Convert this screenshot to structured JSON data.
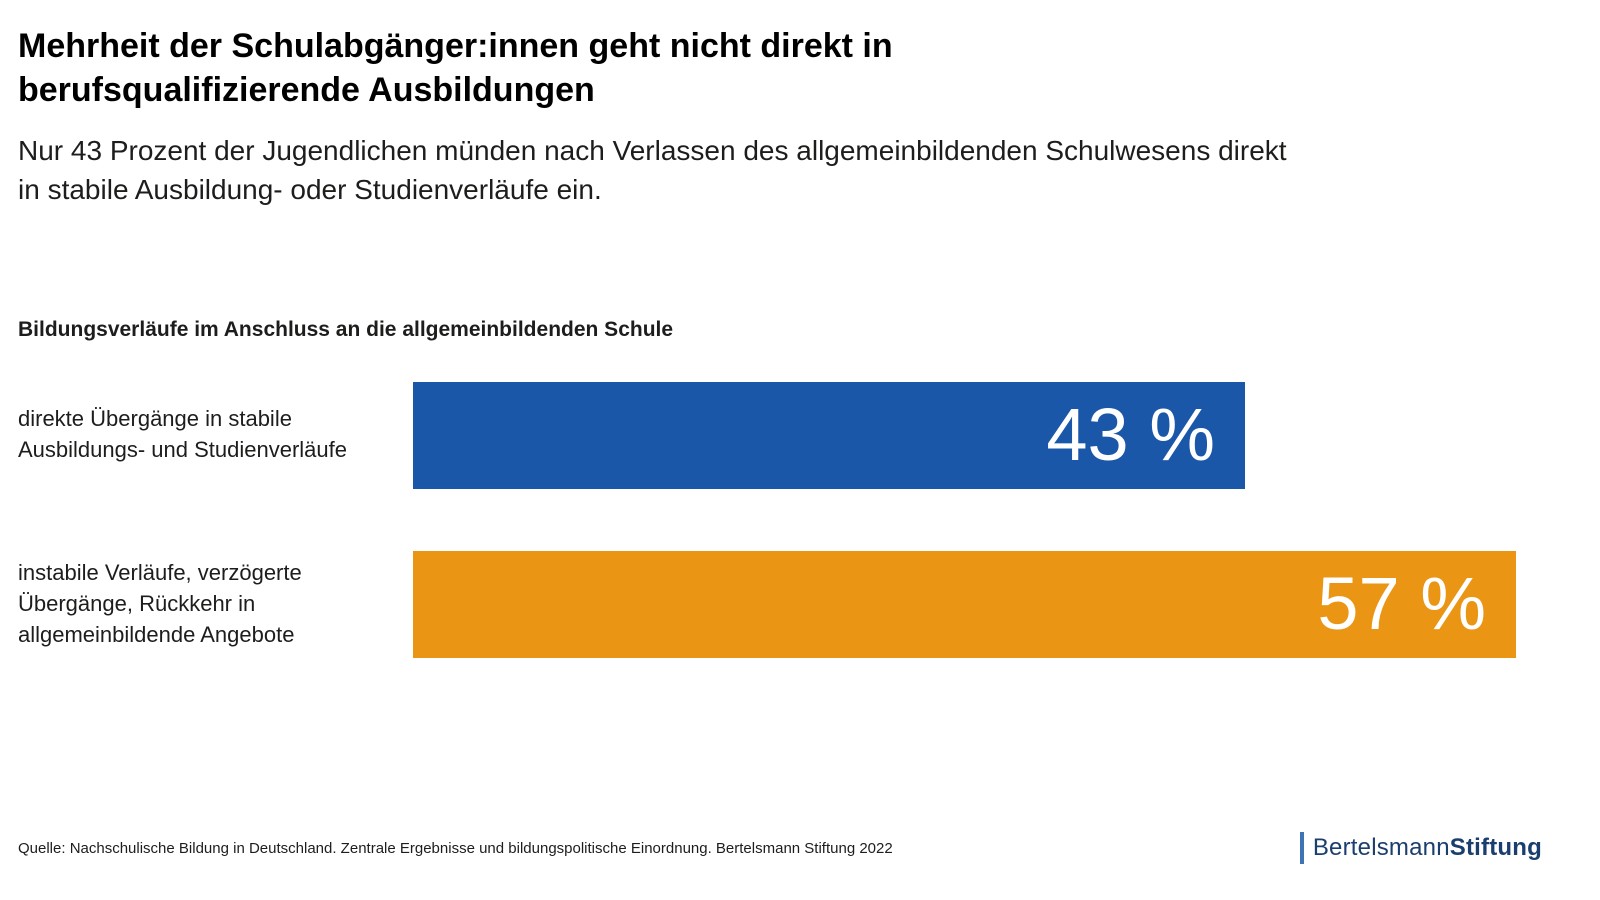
{
  "header": {
    "title": "Mehrheit der Schulabgänger:innen geht nicht direkt in berufsqualifizierende Ausbildungen",
    "subtitle": "Nur 43 Prozent der Jugendlichen münden nach Verlassen des allgemeinbildenden Schulwesens direkt in stabile Ausbildung- oder Studienverläufe ein."
  },
  "chart_data": {
    "type": "bar",
    "orientation": "horizontal",
    "title": "Bildungsverläufe im Anschluss an die allgemeinbildenden Schule",
    "categories": [
      "direkte Übergänge in stabile Ausbildungs- und Studienverläufe",
      "instabile Verläufe, verzögerte Übergänge, Rückkehr in allgemeinbildende Angebote"
    ],
    "values": [
      43,
      57
    ],
    "value_labels": [
      "43 %",
      "57 %"
    ],
    "colors": [
      "#1b57a8",
      "#ea9614"
    ],
    "xlabel": "",
    "ylabel": "",
    "xlim": [
      0,
      57
    ],
    "grid": false,
    "legend": "none",
    "value_label_position": "inside-right",
    "value_label_color": "#ffffff"
  },
  "footer": {
    "source": "Quelle: Nachschulische Bildung in Deutschland. Zentrale Ergebnisse und bildungspolitische Einordnung. Bertelsmann Stiftung 2022",
    "logo": {
      "brand_regular": "Bertelsmann",
      "brand_bold": "Stiftung",
      "accent_bar_color": "#3f74b3",
      "text_color": "#1a3e6e"
    }
  }
}
